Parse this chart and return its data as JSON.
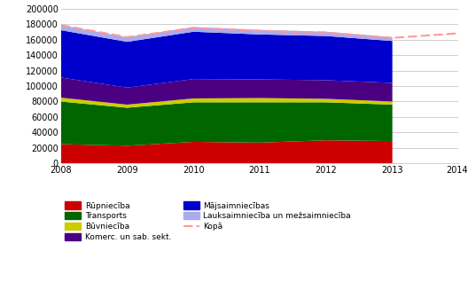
{
  "years": [
    2008,
    2009,
    2010,
    2011,
    2012,
    2013
  ],
  "kopa_years": [
    2008,
    2009,
    2010,
    2011,
    2012,
    2013,
    2014
  ],
  "rupnieciba": [
    25000,
    23000,
    28000,
    27000,
    30000,
    29000
  ],
  "transports": [
    55000,
    49000,
    51000,
    52000,
    49000,
    47000
  ],
  "buvnieciba": [
    5000,
    4000,
    5000,
    5500,
    4500,
    4000
  ],
  "komerc": [
    26000,
    22000,
    25000,
    24000,
    24000,
    24000
  ],
  "majsaimniecibas": [
    61000,
    59000,
    61000,
    58000,
    57000,
    54000
  ],
  "lauksaimnieciba": [
    6500,
    6000,
    6000,
    6000,
    5500,
    5000
  ],
  "kopa": [
    178500,
    163000,
    175000,
    171000,
    169000,
    162000,
    168000
  ],
  "colors": {
    "rupnieciba": "#cc0000",
    "transports": "#006600",
    "buvnieciba": "#cccc00",
    "komerc": "#4b0082",
    "majsaimniecibas": "#0000cc",
    "lauksaimnieciba": "#aaaaee",
    "kopa": "#ff9999"
  },
  "ylim": [
    0,
    200000
  ],
  "yticks": [
    0,
    20000,
    40000,
    60000,
    80000,
    100000,
    120000,
    140000,
    160000,
    180000,
    200000
  ],
  "xtick_labels": [
    "2008",
    "2009",
    "2010",
    "2011",
    "2012",
    "2013",
    "2014*"
  ],
  "legend_labels": {
    "rupnieciba": "Rūpniecība",
    "transports": "Transports",
    "buvnieciba": "Būvniecība",
    "komerc": "Komerc. un sab. sekt.",
    "majsaimniecibas": "Mājsaimniecības",
    "lauksaimnieciba": "Lauksaimniecība un mežsaimniecība",
    "kopa": "Kopā"
  }
}
